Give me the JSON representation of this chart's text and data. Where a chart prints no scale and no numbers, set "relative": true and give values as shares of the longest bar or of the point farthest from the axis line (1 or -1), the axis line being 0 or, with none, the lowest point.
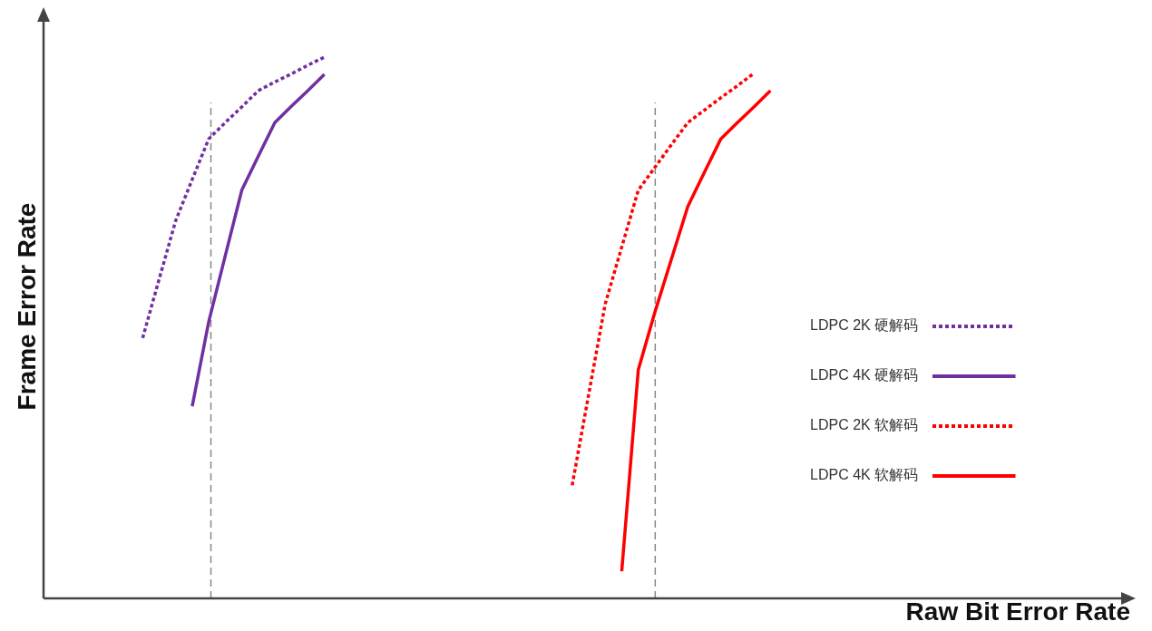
{
  "chart_data": {
    "type": "line",
    "relative": true,
    "xlabel": "Raw Bit Error Rate",
    "ylabel": "Frame Error Rate",
    "legend": "right",
    "categories": [
      null,
      null,
      null,
      null,
      null,
      null,
      null,
      null,
      null,
      null,
      null,
      null,
      null,
      null,
      null,
      null,
      null,
      null,
      null,
      null,
      null,
      null,
      null,
      null,
      null,
      null,
      null,
      null,
      null,
      null,
      null,
      null,
      null,
      null,
      null,
      null,
      null,
      null,
      null,
      null,
      null,
      null,
      null,
      null,
      null,
      null,
      null,
      null,
      null,
      null,
      null,
      null,
      null,
      null,
      null,
      null,
      null,
      null,
      null,
      null,
      null,
      null,
      null,
      null,
      null,
      null,
      null
    ],
    "series": [
      {
        "name": "LDPC 2K 硬解码",
        "color": "#7030a0",
        "line_style": "dotted",
        "values": [
          null,
          null,
          null,
          null,
          null,
          null,
          0.481,
          0.59,
          0.698,
          0.774,
          0.849,
          0.879,
          0.908,
          0.938,
          0.954,
          0.969,
          0.985,
          1,
          null,
          null,
          null,
          null,
          null,
          null,
          null,
          null,
          null,
          null,
          null,
          null,
          null,
          null,
          null,
          null,
          null,
          null,
          null,
          null,
          null,
          null,
          null,
          null,
          null,
          null,
          null,
          null,
          null,
          null,
          null,
          null,
          null,
          null,
          null,
          null,
          null,
          null,
          null,
          null,
          null,
          null,
          null,
          null,
          null,
          null,
          null,
          null,
          null
        ]
      },
      {
        "name": "LDPC 4K 硬解码",
        "color": "#7030a0",
        "line_style": "solid",
        "values": [
          null,
          null,
          null,
          null,
          null,
          null,
          null,
          null,
          null,
          0.355,
          0.511,
          0.633,
          0.754,
          0.817,
          0.879,
          0.909,
          0.938,
          0.968,
          null,
          null,
          null,
          null,
          null,
          null,
          null,
          null,
          null,
          null,
          null,
          null,
          null,
          null,
          null,
          null,
          null,
          null,
          null,
          null,
          null,
          null,
          null,
          null,
          null,
          null,
          null,
          null,
          null,
          null,
          null,
          null,
          null,
          null,
          null,
          null,
          null,
          null,
          null,
          null,
          null,
          null,
          null,
          null,
          null,
          null,
          null,
          null,
          null
        ]
      },
      {
        "name": "LDPC 2K 软解码",
        "color": "#ff0000",
        "line_style": "dotted",
        "values": [
          null,
          null,
          null,
          null,
          null,
          null,
          null,
          null,
          null,
          null,
          null,
          null,
          null,
          null,
          null,
          null,
          null,
          null,
          null,
          null,
          null,
          null,
          null,
          null,
          null,
          null,
          null,
          null,
          null,
          null,
          null,
          null,
          0.209,
          0.377,
          0.544,
          0.649,
          0.754,
          0.796,
          0.838,
          0.879,
          0.902,
          0.925,
          0.947,
          0.97,
          null,
          null,
          null,
          null,
          null,
          null,
          null,
          null,
          null,
          null,
          null,
          null,
          null,
          null,
          null,
          null,
          null,
          null,
          null,
          null,
          null,
          null,
          null
        ]
      },
      {
        "name": "LDPC 4K 软解码",
        "color": "#ff0000",
        "line_style": "solid",
        "values": [
          null,
          null,
          null,
          null,
          null,
          null,
          null,
          null,
          null,
          null,
          null,
          null,
          null,
          null,
          null,
          null,
          null,
          null,
          null,
          null,
          null,
          null,
          null,
          null,
          null,
          null,
          null,
          null,
          null,
          null,
          null,
          null,
          null,
          null,
          null,
          0.05,
          0.422,
          0.528,
          0.626,
          0.724,
          0.787,
          0.849,
          0.879,
          0.908,
          0.938,
          null,
          null,
          null,
          null,
          null,
          null,
          null,
          null,
          null,
          null,
          null,
          null,
          null,
          null,
          null,
          null,
          null,
          null,
          null,
          null,
          null,
          null
        ]
      }
    ]
  }
}
